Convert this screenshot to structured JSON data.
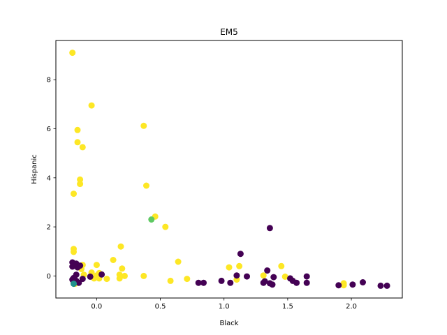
{
  "chart_data": {
    "type": "scatter",
    "title": "EM5",
    "xlabel": "Black",
    "ylabel": "Hispanic",
    "xlim": [
      -0.32,
      2.4
    ],
    "ylim": [
      -0.9,
      9.6
    ],
    "xticks": [
      0.0,
      0.5,
      1.0,
      1.5,
      2.0
    ],
    "xtick_labels": [
      "0.0",
      "0.5",
      "1.0",
      "1.5",
      "2.0"
    ],
    "yticks": [
      0,
      2,
      4,
      6,
      8
    ],
    "ytick_labels": [
      "0",
      "2",
      "4",
      "6",
      "8"
    ],
    "grid": false,
    "legend": "none",
    "colors": {
      "purple": "#440154",
      "yellow": "#fde725",
      "teal": "#21918c",
      "green": "#5ec962"
    },
    "series": [
      {
        "color": "yellow",
        "points": [
          [
            -0.19,
            9.1
          ],
          [
            -0.04,
            6.95
          ],
          [
            -0.15,
            5.95
          ],
          [
            -0.15,
            5.45
          ],
          [
            -0.11,
            5.25
          ],
          [
            0.37,
            6.12
          ],
          [
            -0.13,
            3.93
          ],
          [
            -0.13,
            3.75
          ],
          [
            0.39,
            3.68
          ],
          [
            -0.18,
            3.35
          ],
          [
            0.46,
            2.42
          ],
          [
            0.54,
            2.0
          ],
          [
            0.19,
            1.2
          ],
          [
            -0.18,
            1.1
          ],
          [
            -0.18,
            0.98
          ],
          [
            0.13,
            0.65
          ],
          [
            0.64,
            0.58
          ],
          [
            -0.11,
            0.45
          ],
          [
            0.0,
            0.45
          ],
          [
            1.45,
            0.4
          ],
          [
            1.12,
            0.4
          ],
          [
            1.04,
            0.35
          ],
          [
            0.2,
            0.3
          ],
          [
            -0.12,
            0.28
          ],
          [
            -0.04,
            0.14
          ],
          [
            0.02,
            0.12
          ],
          [
            0.18,
            0.05
          ],
          [
            0.22,
            0.0
          ],
          [
            0.37,
            0.0
          ],
          [
            1.31,
            0.02
          ],
          [
            1.48,
            -0.03
          ],
          [
            -0.1,
            0.05
          ],
          [
            0.0,
            0.02
          ],
          [
            -0.02,
            -0.1
          ],
          [
            0.02,
            -0.1
          ],
          [
            0.08,
            -0.12
          ],
          [
            0.18,
            -0.1
          ],
          [
            0.58,
            -0.2
          ],
          [
            0.71,
            -0.12
          ],
          [
            1.1,
            -0.15
          ],
          [
            1.94,
            -0.3
          ],
          [
            1.94,
            -0.38
          ],
          [
            -0.18,
            -0.25
          ],
          [
            -0.17,
            -0.32
          ]
        ]
      },
      {
        "color": "purple",
        "points": [
          [
            -0.19,
            0.55
          ],
          [
            -0.16,
            0.5
          ],
          [
            -0.19,
            0.38
          ],
          [
            -0.15,
            0.35
          ],
          [
            -0.13,
            0.42
          ],
          [
            -0.16,
            0.05
          ],
          [
            -0.18,
            -0.08
          ],
          [
            -0.19,
            -0.15
          ],
          [
            -0.16,
            -0.2
          ],
          [
            -0.18,
            -0.25
          ],
          [
            -0.14,
            -0.28
          ],
          [
            -0.11,
            -0.12
          ],
          [
            -0.05,
            -0.03
          ],
          [
            0.04,
            0.06
          ],
          [
            1.13,
            0.9
          ],
          [
            1.36,
            1.95
          ],
          [
            1.34,
            0.22
          ],
          [
            1.1,
            0.02
          ],
          [
            1.18,
            -0.02
          ],
          [
            1.05,
            -0.28
          ],
          [
            0.98,
            -0.2
          ],
          [
            0.8,
            -0.28
          ],
          [
            0.84,
            -0.28
          ],
          [
            1.31,
            -0.28
          ],
          [
            1.36,
            -0.3
          ],
          [
            1.38,
            -0.35
          ],
          [
            1.39,
            -0.05
          ],
          [
            1.52,
            -0.1
          ],
          [
            1.54,
            -0.2
          ],
          [
            1.57,
            -0.28
          ],
          [
            1.65,
            -0.02
          ],
          [
            1.65,
            -0.28
          ],
          [
            1.9,
            -0.38
          ],
          [
            2.01,
            -0.35
          ],
          [
            2.09,
            -0.26
          ],
          [
            2.23,
            -0.4
          ],
          [
            2.28,
            -0.4
          ],
          [
            1.32,
            -0.22
          ]
        ]
      },
      {
        "color": "teal",
        "points": [
          [
            -0.18,
            -0.32
          ]
        ]
      },
      {
        "color": "green",
        "points": [
          [
            0.43,
            2.3
          ]
        ]
      }
    ]
  }
}
